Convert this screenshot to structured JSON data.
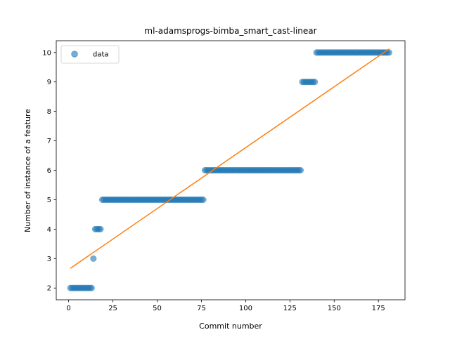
{
  "chart_data": {
    "type": "scatter",
    "title": "ml-adamsprogs-bimba_smart_cast-linear",
    "xlabel": "Commit number",
    "ylabel": "Number of instance of a feature",
    "xlim": [
      -7,
      190
    ],
    "ylim": [
      1.6,
      10.4
    ],
    "xticks": [
      0,
      25,
      50,
      75,
      100,
      125,
      150,
      175
    ],
    "yticks": [
      2,
      3,
      4,
      5,
      6,
      7,
      8,
      9,
      10
    ],
    "grid": false,
    "legend": {
      "position": "top-left",
      "entries": [
        "data"
      ]
    },
    "colors": {
      "points": "#1f77b4",
      "fit": "#ff7f0e"
    },
    "series": [
      {
        "name": "data",
        "kind": "scatter",
        "segments": [
          {
            "x_from": 1,
            "x_to": 13,
            "y": 2
          },
          {
            "x_from": 14,
            "x_to": 14,
            "y": 3
          },
          {
            "x_from": 15,
            "x_to": 18,
            "y": 4
          },
          {
            "x_from": 19,
            "x_to": 76,
            "y": 5
          },
          {
            "x_from": 77,
            "x_to": 131,
            "y": 6
          },
          {
            "x_from": 132,
            "x_to": 139,
            "y": 9
          },
          {
            "x_from": 140,
            "x_to": 181,
            "y": 10
          }
        ]
      },
      {
        "kind": "line",
        "x": [
          1,
          181
        ],
        "y": [
          2.67,
          10.12
        ]
      }
    ]
  }
}
